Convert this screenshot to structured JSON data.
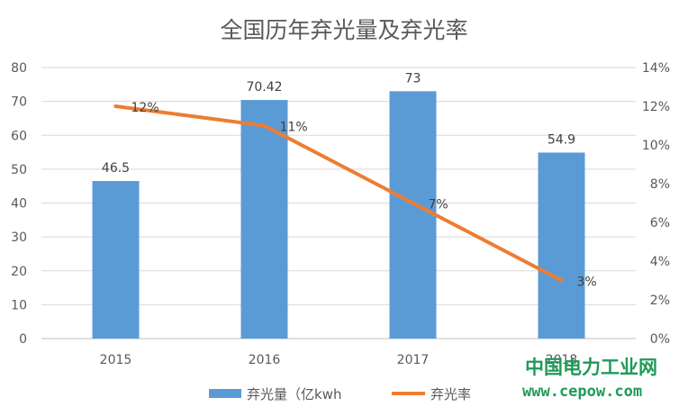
{
  "chart_data": {
    "type": "bar",
    "title": "全国历年弃光量及弃光率",
    "categories": [
      "2015",
      "2016",
      "2017",
      "2018"
    ],
    "series": [
      {
        "name": "弃光量（亿kwh",
        "type": "bar",
        "axis": "left",
        "values": [
          46.5,
          70.42,
          73,
          54.9
        ],
        "labels": [
          "46.5",
          "70.42",
          "73",
          "54.9"
        ],
        "color": "#5b9bd5"
      },
      {
        "name": "弃光率",
        "type": "line",
        "axis": "right",
        "values": [
          12,
          11,
          7,
          3
        ],
        "labels": [
          "12%",
          "11%",
          "7%",
          "3%"
        ],
        "color": "#ed7d31"
      }
    ],
    "y_left": {
      "min": 0,
      "max": 80,
      "step": 10,
      "ticks": [
        "0",
        "10",
        "20",
        "30",
        "40",
        "50",
        "60",
        "70",
        "80"
      ]
    },
    "y_right": {
      "min": 0,
      "max": 14,
      "step": 2,
      "ticks": [
        "0%",
        "2%",
        "4%",
        "6%",
        "8%",
        "10%",
        "12%",
        "14%"
      ]
    },
    "grid": true,
    "legend_position": "bottom",
    "gridline_color": "#d9d9d9"
  },
  "watermark": {
    "name": "中国电力工业网",
    "url": "www.cepow.com",
    "color": "#1f9a58"
  }
}
